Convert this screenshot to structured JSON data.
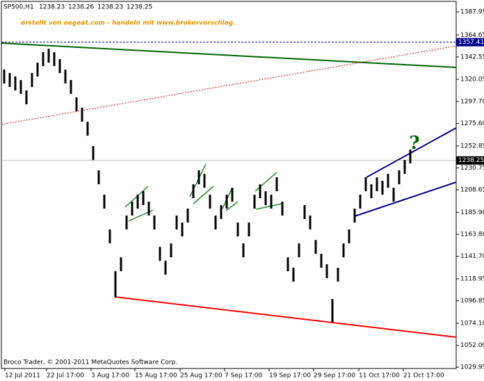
{
  "chart_data": {
    "type": "ohlc",
    "symbol": "SP500,H1",
    "last_ohlc": [
      1238.23,
      1238.26,
      1238.23,
      1238.25
    ],
    "watermark": "erstellt von oegeat.com - handeln mit www.brokervorschlag.",
    "copyright": "Broco Trader, © 2001-2011 MetaQuotes Software Corp.",
    "annotation": "?",
    "color": "#000000",
    "x": [
      4,
      12,
      20,
      28,
      36,
      44,
      52,
      60,
      68,
      76,
      84,
      92,
      100,
      108,
      116,
      124,
      132,
      140,
      148,
      156,
      164,
      172,
      180,
      188,
      196,
      204,
      212,
      220,
      228,
      236,
      244,
      252,
      260,
      268,
      276,
      284,
      292,
      300,
      308,
      316,
      324,
      332,
      340,
      348,
      356,
      364,
      372,
      380,
      388,
      396,
      404,
      412,
      420,
      428,
      436,
      444,
      452,
      460,
      468,
      476,
      484,
      492,
      500,
      508,
      516,
      524,
      532,
      540,
      548,
      556,
      564,
      572,
      580,
      588
    ],
    "high": [
      1329.8,
      1326.3,
      1322.8,
      1319.3,
      1308.8,
      1326.3,
      1336.8,
      1347.3,
      1350.8,
      1347.3,
      1340.3,
      1329.8,
      1319.3,
      1301.8,
      1291.3,
      1277.2,
      1252.7,
      1228.2,
      1203.7,
      1168.7,
      1126.6,
      1140.6,
      1182.7,
      1196.7,
      1203.7,
      1207.2,
      1196.7,
      1182.7,
      1151.1,
      1137.1,
      1154.6,
      1182.7,
      1175.7,
      1189.7,
      1214.2,
      1228.2,
      1224.7,
      1203.7,
      1182.7,
      1193.2,
      1203.7,
      1210.7,
      1175.7,
      1154.6,
      1175.7,
      1203.7,
      1214.2,
      1207.2,
      1203.7,
      1221.2,
      1196.7,
      1140.6,
      1130.1,
      1154.6,
      1193.2,
      1182.7,
      1158.1,
      1144.1,
      1133.6,
      1098.6,
      1130.1,
      1154.6,
      1168.7,
      1189.7,
      1203.7,
      1221.2,
      1214.2,
      1221.2,
      1217.7,
      1224.7,
      1210.7,
      1228.2,
      1238.7,
      1249.2
    ],
    "low": [
      1315.8,
      1312.3,
      1308.8,
      1305.3,
      1294.8,
      1312.3,
      1322.8,
      1333.3,
      1336.8,
      1333.3,
      1326.3,
      1315.8,
      1305.3,
      1287.8,
      1277.3,
      1263.2,
      1238.7,
      1214.2,
      1189.7,
      1154.7,
      1100.4,
      1126.6,
      1168.7,
      1182.7,
      1189.7,
      1193.2,
      1182.7,
      1168.7,
      1137.1,
      1123.1,
      1140.6,
      1168.7,
      1161.7,
      1175.7,
      1200.2,
      1214.2,
      1210.7,
      1189.7,
      1168.7,
      1179.2,
      1189.7,
      1196.7,
      1161.7,
      1140.6,
      1161.7,
      1189.7,
      1200.2,
      1193.2,
      1189.7,
      1207.2,
      1182.7,
      1126.6,
      1116.1,
      1140.6,
      1179.2,
      1168.7,
      1144.1,
      1130.1,
      1119.6,
      1075.0,
      1116.1,
      1140.6,
      1154.7,
      1175.7,
      1189.7,
      1207.2,
      1200.2,
      1207.2,
      1203.7,
      1210.7,
      1196.7,
      1214.2,
      1224.7,
      1235.2
    ],
    "hlines": [
      1357.41,
      1238.25
    ],
    "hline_colors": [
      "#00008b",
      "#808080"
    ],
    "xlim": [
      0,
      654
    ],
    "ylim": [
      1028.6,
      1398.5
    ],
    "xticks": [
      {
        "value": 5,
        "label": "12 Jul 2011"
      },
      {
        "value": 65,
        "label": "22 Jul 17:00"
      },
      {
        "value": 129,
        "label": "3 Aug 17:00"
      },
      {
        "value": 192,
        "label": "15 Aug 17:00"
      },
      {
        "value": 257,
        "label": "25 Aug 17:00"
      },
      {
        "value": 321,
        "label": "7 Sep 17:00"
      },
      {
        "value": 385,
        "label": "19 Sep 17:00"
      },
      {
        "value": 449,
        "label": "29 Sep 17:00"
      },
      {
        "value": 514,
        "label": "11 Oct 17:00"
      },
      {
        "value": 578,
        "label": "21 Oct 17:00"
      }
    ],
    "yticks": [
      1387.95,
      1364.65,
      1342.55,
      1320.05,
      {
        "value": 1297.7,
        "label": "1297.70"
      },
      {
        "value": 1275.6,
        "label": "1275.60"
      },
      1252.85,
      1230.75,
      1208.65,
      {
        "value": 1185.9,
        "label": "1185.90"
      },
      {
        "value": 1163.8,
        "label": "1163.80"
      },
      {
        "value": 1141.7,
        "label": "1141.70"
      },
      1118.95,
      1096.85,
      {
        "value": 1074.1,
        "label": "1074.10"
      },
      {
        "value": 1052.0,
        "label": "1052.00"
      },
      1029.95
    ]
  }
}
